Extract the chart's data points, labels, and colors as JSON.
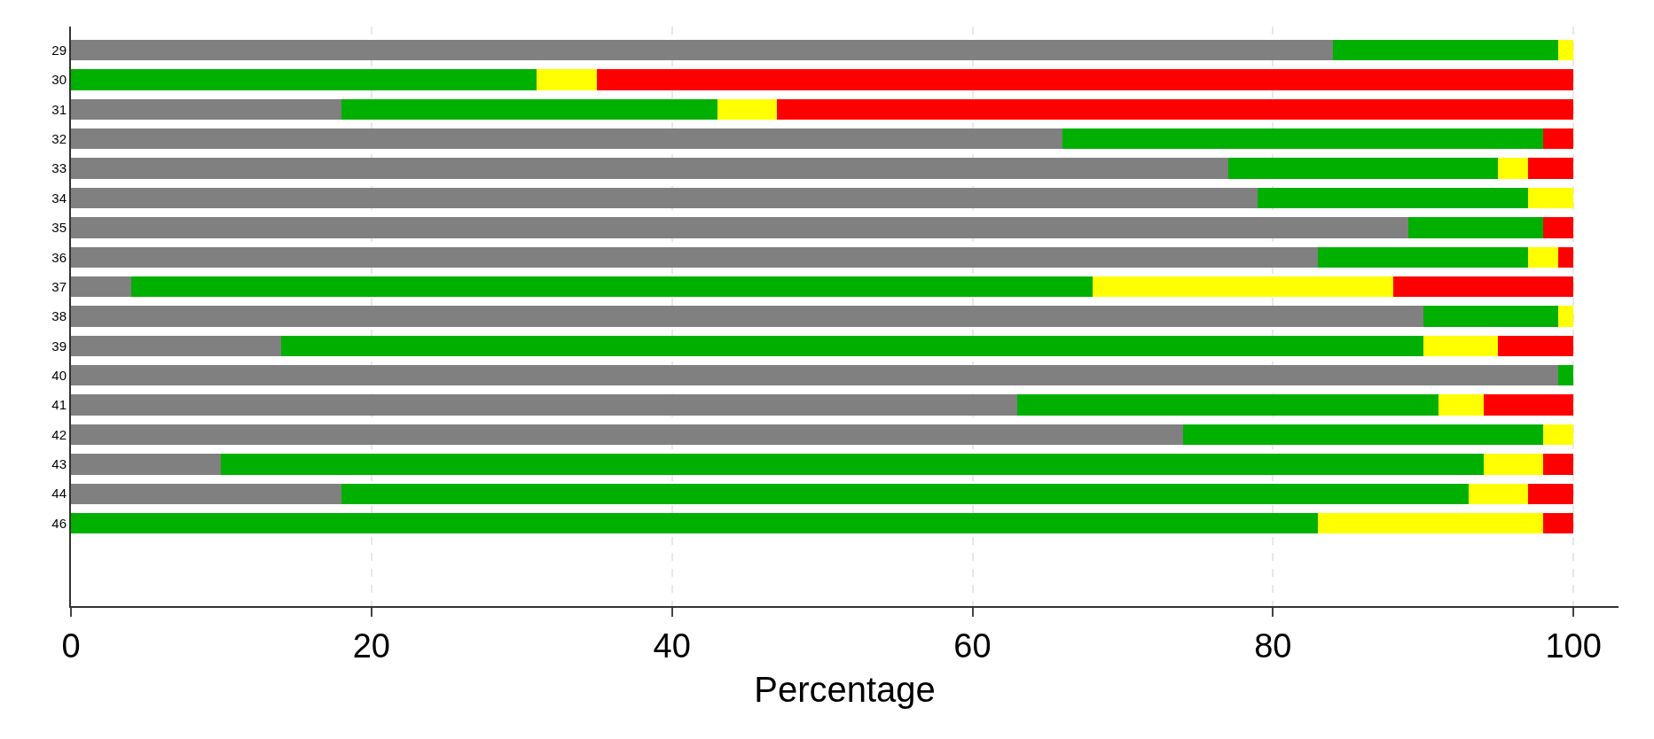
{
  "chart_data": {
    "type": "bar",
    "orientation": "horizontal",
    "stacked": true,
    "categories": [
      "29",
      "30",
      "31",
      "32",
      "33",
      "34",
      "35",
      "36",
      "37",
      "38",
      "39",
      "40",
      "41",
      "42",
      "43",
      "44",
      "46"
    ],
    "series": [
      {
        "color": "#808080",
        "values": [
          84,
          0,
          18,
          66,
          77,
          79,
          89,
          83,
          4,
          90,
          14,
          99,
          63,
          74,
          10,
          18,
          0
        ]
      },
      {
        "color": "#00b000",
        "values": [
          15,
          31,
          25,
          32,
          18,
          18,
          9,
          14,
          64,
          9,
          76,
          1,
          28,
          24,
          84,
          75,
          83
        ]
      },
      {
        "color": "#ffff00",
        "values": [
          1,
          4,
          4,
          0,
          2,
          3,
          0,
          2,
          20,
          1,
          5,
          0,
          3,
          2,
          4,
          4,
          15
        ]
      },
      {
        "color": "#ff0000",
        "values": [
          0,
          65,
          53,
          2,
          3,
          0,
          2,
          1,
          12,
          0,
          5,
          0,
          6,
          0,
          2,
          3,
          2
        ]
      }
    ],
    "xlabel": "Percentage",
    "xlim": [
      0,
      103
    ],
    "xticks": [
      0,
      20,
      40,
      60,
      80,
      100
    ],
    "grid": "x"
  }
}
